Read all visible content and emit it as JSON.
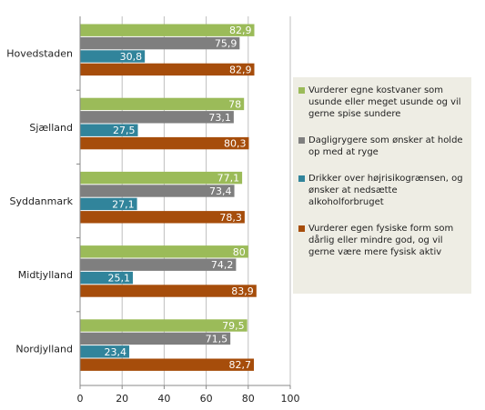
{
  "chart_data": {
    "type": "bar",
    "orientation": "horizontal",
    "categories": [
      "Hovedstaden",
      "Sjælland",
      "Syddanmark",
      "Midtjylland",
      "Nordjylland"
    ],
    "series": [
      {
        "name": "Vurderer egne kostvaner som usunde eller meget usunde og vil gerne spise sundere",
        "color": "#9bbb59",
        "values": [
          82.9,
          78,
          77.1,
          80,
          79.5
        ],
        "labels": [
          "82,9",
          "78",
          "77,1",
          "80",
          "79,5"
        ]
      },
      {
        "name": "Dagligrygere som ønsker at holde op med at ryge",
        "color": "#7f7f7f",
        "values": [
          75.9,
          73.1,
          73.4,
          74.2,
          71.5
        ],
        "labels": [
          "75,9",
          "73,1",
          "73,4",
          "74,2",
          "71,5"
        ]
      },
      {
        "name": "Drikker over højrisikogrænsen, og ønsker at nedsætte alkoholforbruget",
        "color": "#31849b",
        "values": [
          30.8,
          27.5,
          27.1,
          25.1,
          23.4
        ],
        "labels": [
          "30,8",
          "27,5",
          "27,1",
          "25,1",
          "23,4"
        ]
      },
      {
        "name": "Vurderer egen fysiske form som dårlig eller mindre god, og vil gerne være mere fysisk aktiv",
        "color": "#a64d0b",
        "values": [
          82.9,
          80.3,
          78.3,
          83.9,
          82.7
        ],
        "labels": [
          "82,9",
          "80,3",
          "78,3",
          "83,9",
          "82,7"
        ]
      }
    ],
    "xlim": [
      0,
      100
    ],
    "xticks": [
      0,
      20,
      40,
      60,
      80,
      100
    ],
    "grid": true,
    "legend_position": "right"
  }
}
